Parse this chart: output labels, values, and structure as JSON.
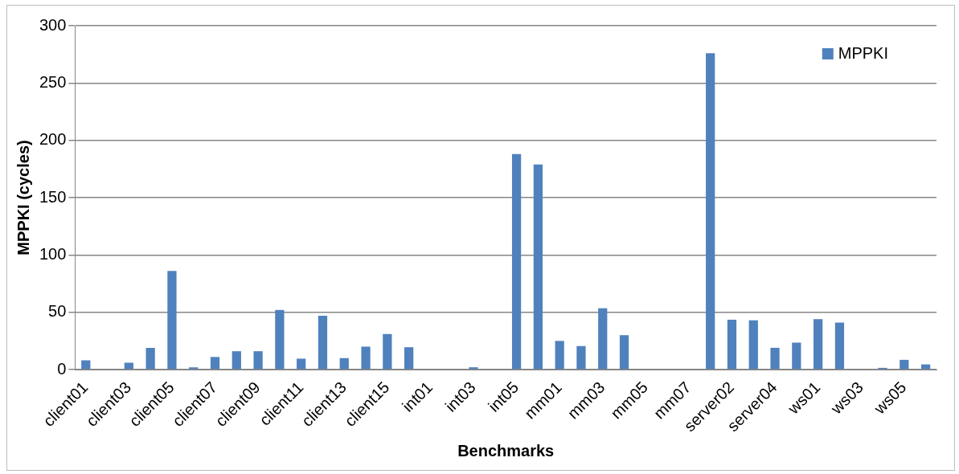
{
  "chart_data": {
    "type": "bar",
    "xlabel": "Benchmarks",
    "ylabel": "MPPKI (cycles)",
    "categories": [
      "client01",
      null,
      "client03",
      null,
      "client05",
      null,
      "client07",
      null,
      "client09",
      null,
      "client11",
      null,
      "client13",
      null,
      "client15",
      null,
      "int01",
      null,
      "int03",
      null,
      "int05",
      null,
      "mm01",
      null,
      "mm03",
      null,
      "mm05",
      null,
      "mm07",
      null,
      "server02",
      null,
      "server04",
      null,
      "ws01",
      null,
      "ws03",
      null,
      "ws05",
      null
    ],
    "series": [
      {
        "name": "MPPKI",
        "color": "#4f81bd",
        "values": [
          8,
          0.5,
          6,
          19,
          86,
          2,
          11,
          16,
          16,
          52,
          9.5,
          47,
          10,
          20,
          31,
          19.5,
          0,
          0.5,
          2,
          0,
          188,
          179,
          25,
          20.5,
          53.5,
          30,
          0,
          0,
          0,
          276,
          43.5,
          43,
          19,
          23.5,
          44,
          41,
          0,
          1.5,
          8.5,
          4.5
        ]
      }
    ],
    "ylim": [
      0,
      300
    ],
    "yticks": [
      0,
      50,
      100,
      150,
      200,
      250,
      300
    ],
    "grid": "y",
    "legend": "top right"
  }
}
